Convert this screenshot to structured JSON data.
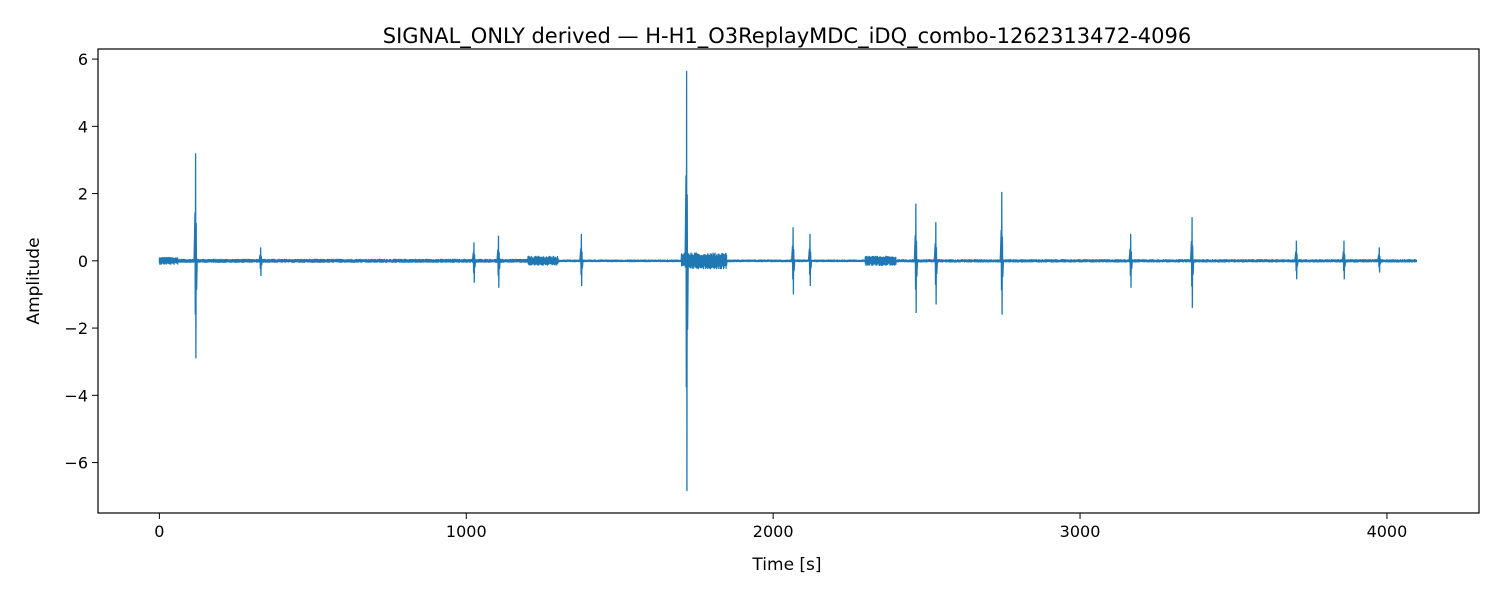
{
  "chart_data": {
    "type": "line",
    "title": "SIGNAL_ONLY derived — H-H1_O3ReplayMDC_iDQ_combo-1262313472-4096",
    "xlabel": "Time [s]",
    "ylabel": "Amplitude",
    "xlim": [
      -200,
      4300
    ],
    "ylim": [
      -7.5,
      6.3
    ],
    "xticks": [
      0,
      1000,
      2000,
      3000,
      4000
    ],
    "xtick_labels": [
      "0",
      "1000",
      "2000",
      "3000",
      "4000"
    ],
    "yticks": [
      -6,
      -4,
      -2,
      0,
      2,
      4,
      6
    ],
    "ytick_labels": [
      "−6",
      "−4",
      "−2",
      "0",
      "2",
      "4",
      "6"
    ],
    "grid": false,
    "line_color": "#1f77b4",
    "series": [
      {
        "time_range": [
          0,
          4096
        ],
        "noise_band": [
          {
            "t": [
              0,
              60
            ],
            "amp": 0.12
          },
          {
            "t": [
              60,
              1300
            ],
            "amp": 0.06
          },
          {
            "t": [
              1200,
              1300
            ],
            "amp": 0.15
          },
          {
            "t": [
              1700,
              1850
            ],
            "amp": 0.25
          },
          {
            "t": [
              2300,
              2400
            ],
            "amp": 0.15
          },
          {
            "t": [
              2400,
              4096
            ],
            "amp": 0.05
          }
        ],
        "spikes": [
          {
            "t": 118,
            "max": 3.2,
            "min": -2.9
          },
          {
            "t": 330,
            "max": 0.4,
            "min": -0.45
          },
          {
            "t": 1025,
            "max": 0.55,
            "min": -0.65
          },
          {
            "t": 1105,
            "max": 0.75,
            "min": -0.8
          },
          {
            "t": 1375,
            "max": 0.8,
            "min": -0.75
          },
          {
            "t": 1718,
            "max": 5.65,
            "min": -6.85
          },
          {
            "t": 2065,
            "max": 1.0,
            "min": -1.0
          },
          {
            "t": 2120,
            "max": 0.8,
            "min": -0.75
          },
          {
            "t": 2465,
            "max": 1.7,
            "min": -1.55
          },
          {
            "t": 2530,
            "max": 1.15,
            "min": -1.3
          },
          {
            "t": 2745,
            "max": 2.05,
            "min": -1.6
          },
          {
            "t": 3165,
            "max": 0.8,
            "min": -0.8
          },
          {
            "t": 3365,
            "max": 1.3,
            "min": -1.4
          },
          {
            "t": 3705,
            "max": 0.6,
            "min": -0.55
          },
          {
            "t": 3860,
            "max": 0.6,
            "min": -0.55
          },
          {
            "t": 3975,
            "max": 0.4,
            "min": -0.35
          }
        ]
      }
    ]
  }
}
